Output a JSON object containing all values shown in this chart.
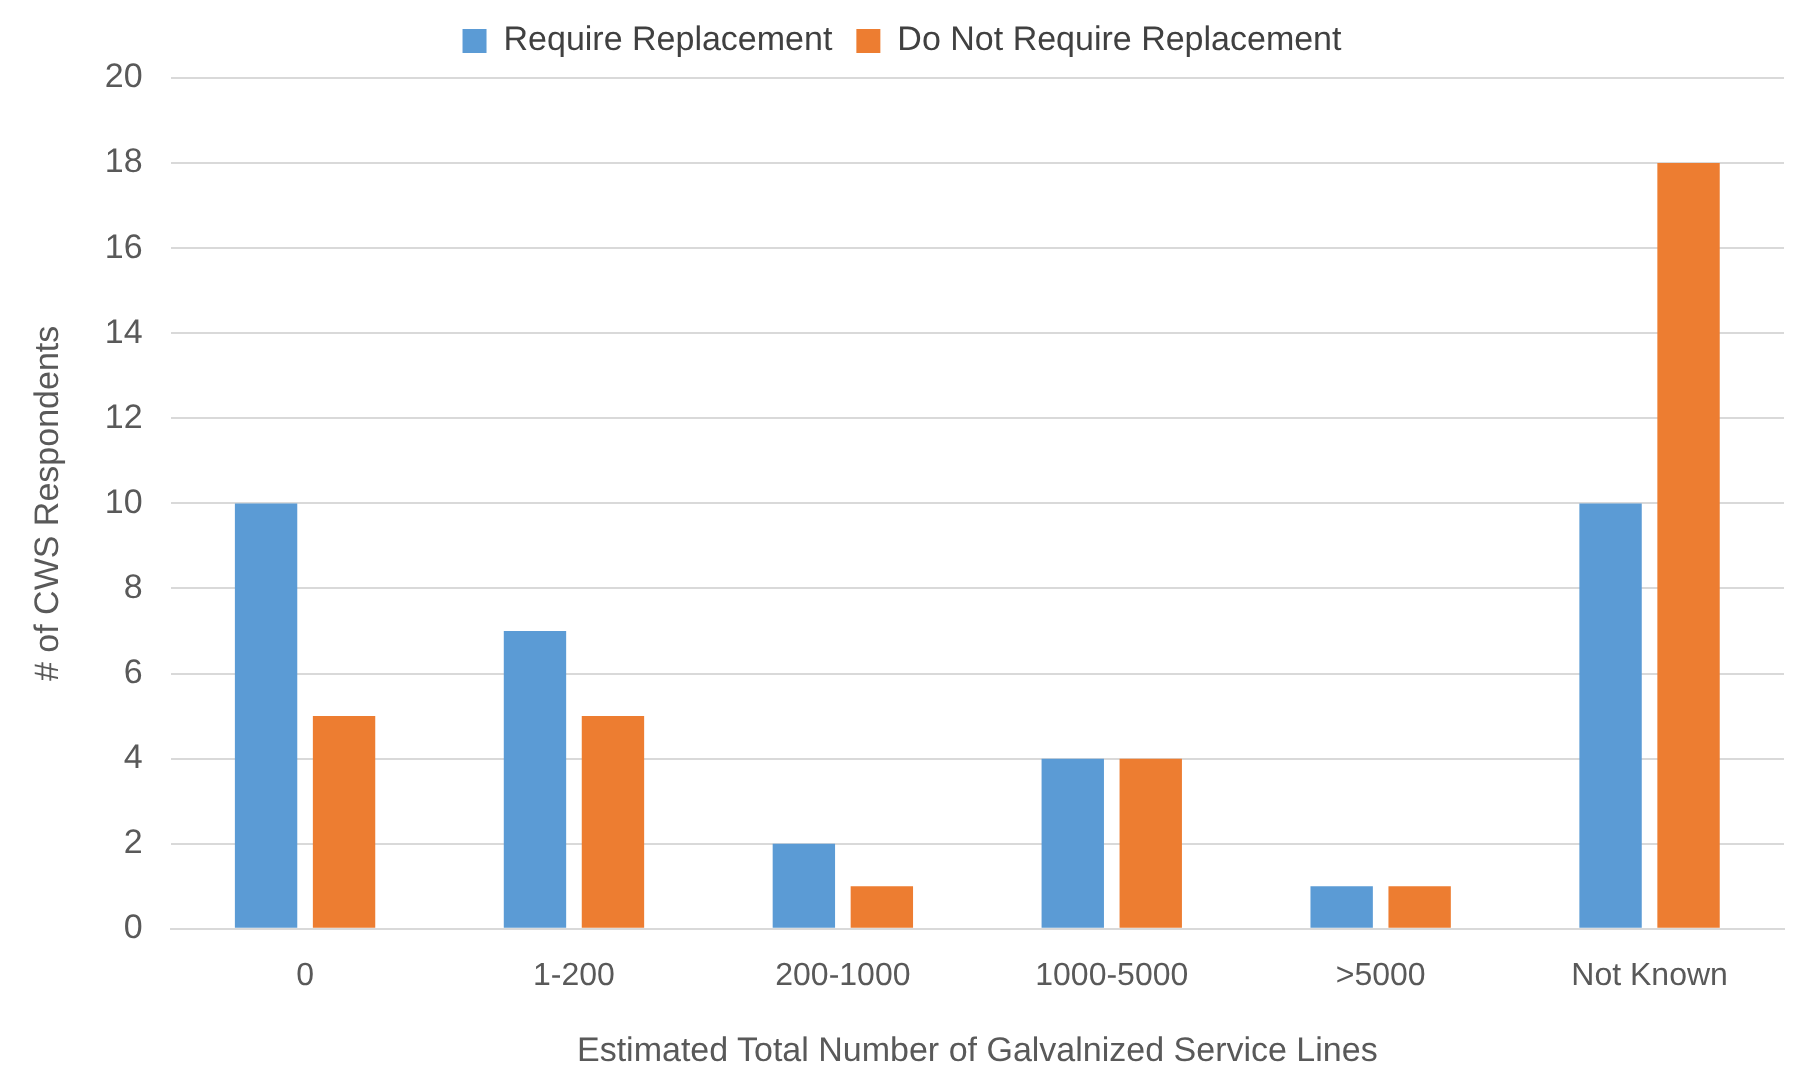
{
  "chart_data": {
    "type": "bar",
    "xlabel": "Estimated Total Number of Galvalnized Service Lines",
    "ylabel": "# of CWS Respondents",
    "categories": [
      "0",
      "1-200",
      "200-1000",
      "1000-5000",
      ">5000",
      "Not Known"
    ],
    "series": [
      {
        "name": "Require Replacement",
        "color": "#5b9bd5",
        "values": [
          10,
          7,
          2,
          4,
          1,
          10
        ]
      },
      {
        "name": "Do Not Require Replacement",
        "color": "#ed7d31",
        "values": [
          5,
          5,
          1,
          4,
          1,
          18
        ]
      }
    ],
    "ylim": [
      0,
      20
    ],
    "yticks": [
      0,
      2,
      4,
      6,
      8,
      10,
      12,
      14,
      16,
      18,
      20
    ],
    "grid": "y",
    "legend": "top"
  }
}
